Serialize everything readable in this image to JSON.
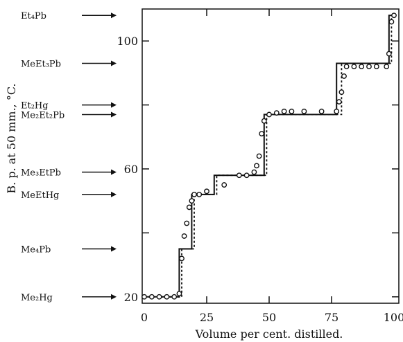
{
  "chart_data": {
    "type": "line",
    "title": "",
    "xlabel": "Volume per cent. distilled.",
    "ylabel": "B. p. at 50 mm., °C.",
    "xlim": [
      0,
      100
    ],
    "ylim": [
      18,
      110
    ],
    "x_ticks": [
      0,
      25,
      50,
      75,
      100
    ],
    "y_ticks": [
      20,
      60,
      100
    ],
    "y_ticks_unlabeled": [
      40,
      80
    ],
    "grid": false,
    "compounds": [
      {
        "name": "Et₄Pb",
        "bp": 108
      },
      {
        "name": "MeEt₃Pb",
        "bp": 93
      },
      {
        "name": "Et₂Hg",
        "bp": 80
      },
      {
        "name": "Me₂Et₂Pb",
        "bp": 77
      },
      {
        "name": "Me₃EtPb",
        "bp": 59
      },
      {
        "name": "MeEtHg",
        "bp": 52
      },
      {
        "name": "Me₄Pb",
        "bp": 35
      },
      {
        "name": "Me₂Hg",
        "bp": 20
      }
    ],
    "series": [
      {
        "style": "solid-step",
        "x": [
          0,
          14,
          14,
          19,
          19,
          28,
          28,
          48,
          48,
          77,
          77,
          98,
          98,
          100
        ],
        "y": [
          20,
          20,
          35,
          35,
          52,
          52,
          58,
          58,
          77,
          77,
          93,
          93,
          108,
          108
        ]
      },
      {
        "style": "dashed-step",
        "x": [
          0,
          15,
          15,
          20,
          20,
          29,
          29,
          49,
          49,
          79,
          79,
          99,
          99,
          100
        ],
        "y": [
          20,
          20,
          35,
          35,
          52,
          52,
          58,
          58,
          77,
          77,
          93,
          93,
          108,
          108
        ]
      },
      {
        "style": "circles",
        "x": [
          0,
          3,
          6,
          9,
          12,
          14,
          15,
          16,
          17,
          18,
          19,
          20,
          22,
          25,
          32,
          38,
          41,
          44,
          45,
          46,
          47,
          48,
          50,
          53,
          56,
          59,
          64,
          71,
          77,
          78,
          79,
          80,
          81,
          84,
          87,
          90,
          93,
          97,
          98,
          99,
          100
        ],
        "y": [
          20,
          20,
          20,
          20,
          20,
          21,
          32,
          39,
          43,
          48,
          50,
          52,
          52,
          53,
          55,
          58,
          58,
          59,
          61,
          64,
          71,
          75,
          77,
          77.5,
          78,
          78,
          78,
          78,
          78,
          81,
          84,
          89,
          92,
          92,
          92,
          92,
          92,
          92,
          96,
          106,
          108
        ]
      }
    ]
  }
}
